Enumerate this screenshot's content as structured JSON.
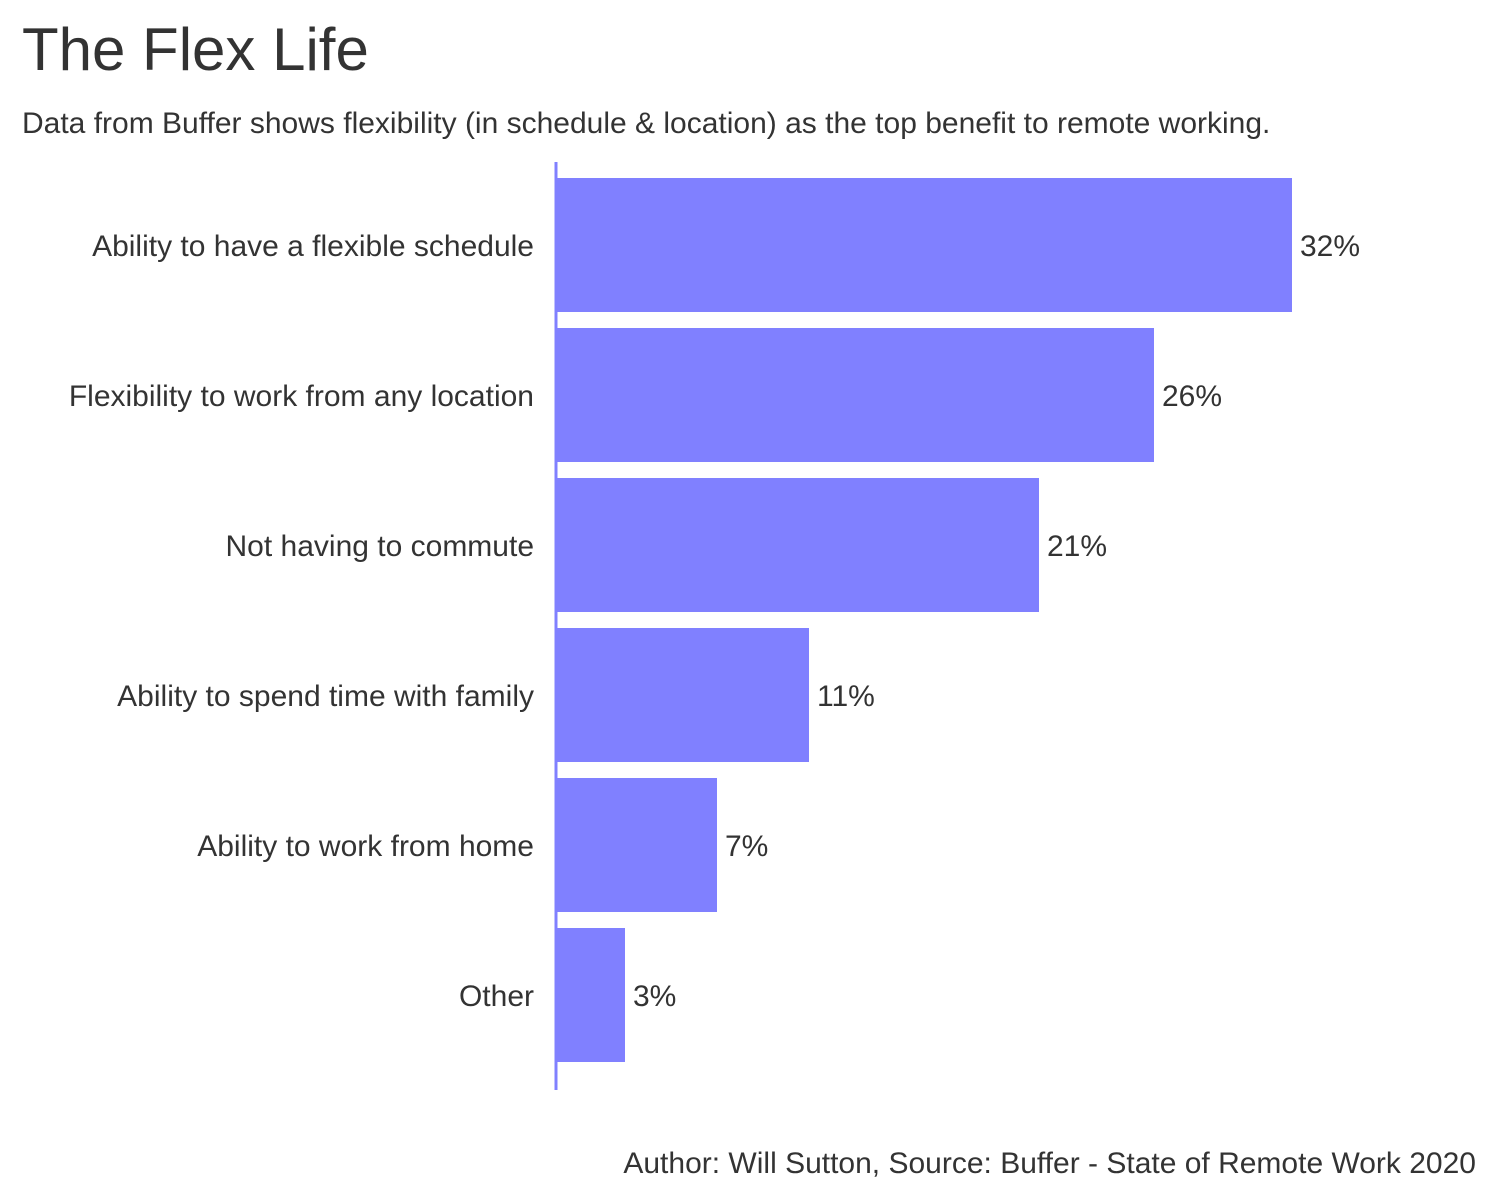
{
  "title": "The Flex Life",
  "subtitle": "Data from Buffer shows flexibility (in schedule & location) as the top benefit to remote working.",
  "caption": "Author: Will Sutton, Source: Buffer - State of Remote Work 2020",
  "colors": {
    "bar": "#8080ff",
    "axis": "#8080ff",
    "text": "#333333"
  },
  "chart_data": {
    "type": "bar",
    "orientation": "horizontal",
    "title": "The Flex Life",
    "subtitle": "Data from Buffer shows flexibility (in schedule & location) as the top benefit to remote working.",
    "categories": [
      "Ability to have a flexible schedule",
      "Flexibility to work from any location",
      "Not having to commute",
      "Ability to spend time with family",
      "Ability to work from home",
      "Other"
    ],
    "values": [
      32,
      26,
      21,
      11,
      7,
      3
    ],
    "value_labels": [
      "32%",
      "26%",
      "21%",
      "11%",
      "7%",
      "3%"
    ],
    "unit": "%",
    "xlim": [
      0,
      32
    ],
    "grid": false,
    "legend": "none"
  }
}
